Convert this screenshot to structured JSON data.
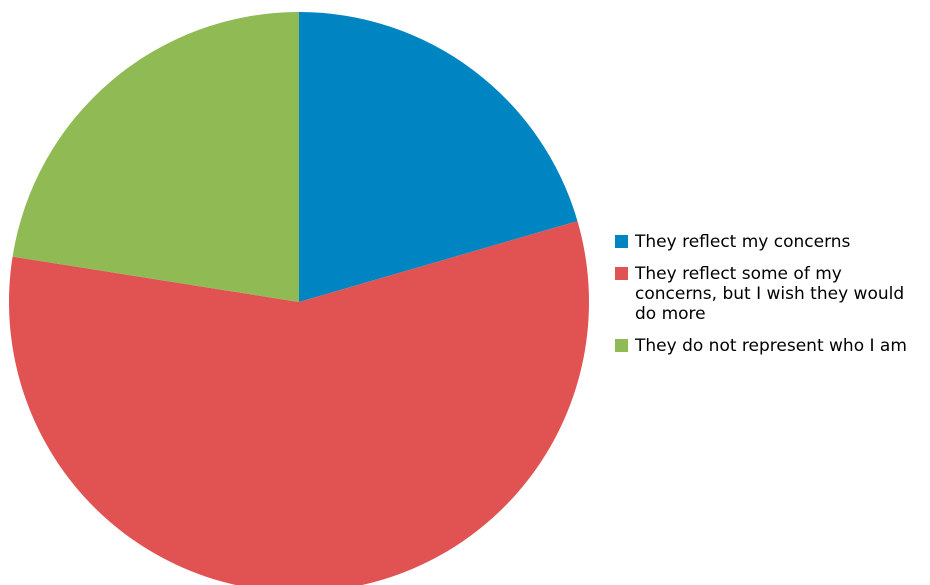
{
  "chart_data": {
    "type": "pie",
    "categories": [
      "They reflect my concerns",
      "They reflect some of my concerns, but I wish they would do more",
      "They do not represent who I am"
    ],
    "values": [
      20.5,
      57,
      22.5
    ],
    "colors": [
      "#0085c3",
      "#e15353",
      "#8fba54"
    ],
    "start_angle_deg": 0,
    "direction": "clockwise",
    "legend_position": "right"
  }
}
